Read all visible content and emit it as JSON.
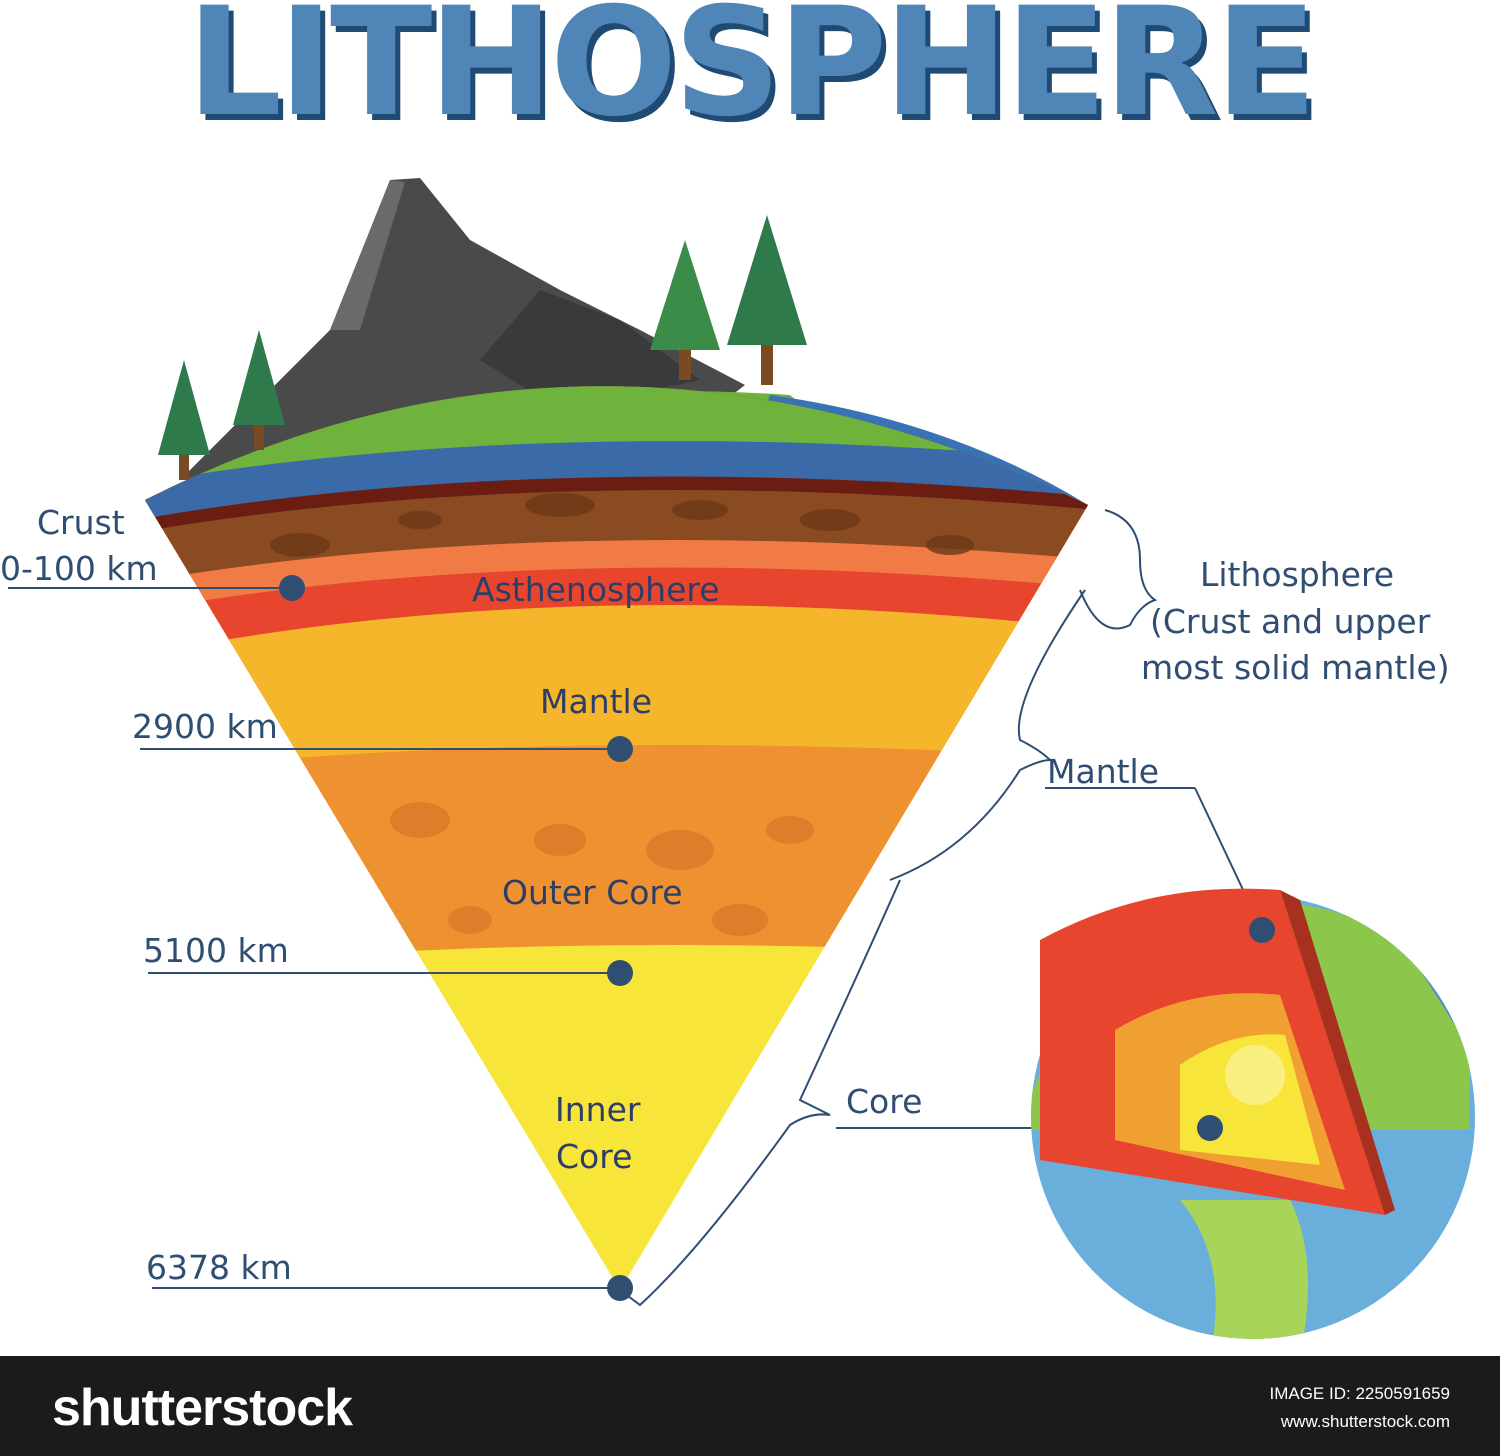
{
  "title": "LITHOSPHERE",
  "layers": {
    "asthenosphere": "Asthenosphere",
    "mantle": "Mantle",
    "outer_core": "Outer Core",
    "inner_core_line1": "Inner",
    "inner_core_line2": "Core"
  },
  "depth_labels": {
    "crust_line1": "Crust",
    "crust_line2": "0-100 km",
    "mantle_boundary": "2900 km",
    "outer_core_boundary": "5100 km",
    "center": "6378 km"
  },
  "brackets": {
    "lithosphere_line1": "Lithosphere",
    "lithosphere_line2": "(Crust and upper",
    "lithosphere_line3": "most solid mantle)",
    "mantle": "Mantle",
    "core": "Core"
  },
  "footer": {
    "brand": "shutterstock",
    "image_id": "IMAGE ID: 2250591659",
    "site": "www.shutterstock.com"
  },
  "colors": {
    "title": "#4f86b7",
    "label_text": "#2f4e72",
    "leader_line": "#2f4e72",
    "grass": "#6fb33c",
    "ocean": "#3a73b5",
    "crust": "#8a4a22",
    "asthenosphere": "#e8452f",
    "mantle": "#f5b62b",
    "outer_core": "#ee9130",
    "inner_core": "#f7e53a"
  }
}
